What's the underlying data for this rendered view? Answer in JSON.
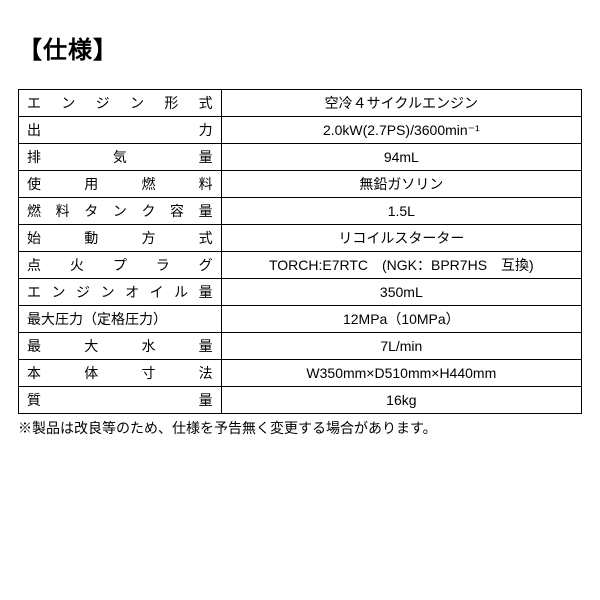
{
  "title": "【仕様】",
  "table": {
    "columns": [
      {
        "width_pct": 36,
        "align": "justify"
      },
      {
        "width_pct": 64,
        "align": "center"
      }
    ],
    "border_color": "#000000",
    "background_color": "#ffffff",
    "font_size_pt": 11,
    "rows": [
      {
        "label": "エンジン形式",
        "value": "空冷４サイクルエンジン"
      },
      {
        "label": "出力",
        "value_html": "2.0kW(2.7PS)/3600min⁻¹",
        "value": "2.0kW(2.7PS)/3600min-1"
      },
      {
        "label": "排気量",
        "value": "94mL"
      },
      {
        "label": "使用燃料",
        "value": "無鉛ガソリン"
      },
      {
        "label": "燃料タンク容量",
        "value": "1.5L"
      },
      {
        "label": "始動方式",
        "value": "リコイルスターター"
      },
      {
        "label": "点火プラグ",
        "value": "TORCH:E7RTC　(NGK：BPR7HS　互換)"
      },
      {
        "label": "エンジンオイル量",
        "value": "350mL"
      },
      {
        "label": "最大圧力（定格圧力）",
        "value": "12MPa（10MPa）",
        "label_justify": false
      },
      {
        "label": "最大水量",
        "value": "7L/min"
      },
      {
        "label": "本体寸法",
        "value": "W350mm×D510mm×H440mm"
      },
      {
        "label": "質量",
        "value": "16kg"
      }
    ]
  },
  "note": "※製品は改良等のため、仕様を予告無く変更する場合があります。",
  "colors": {
    "text": "#000000",
    "background": "#ffffff",
    "border": "#000000"
  },
  "typography": {
    "title_fontsize_pt": 18,
    "title_weight": "bold",
    "body_fontsize_pt": 11,
    "font_family": "Hiragino Kaku Gothic Pro"
  }
}
